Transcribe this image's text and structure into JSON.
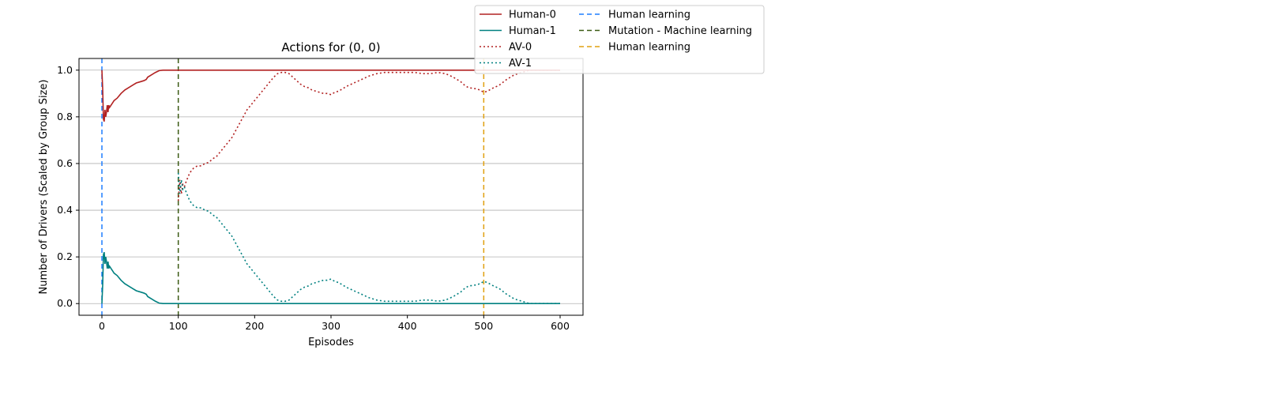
{
  "chart_data": {
    "type": "line",
    "title": "Actions for (0, 0)",
    "xlabel": "Episodes",
    "ylabel": "Number of Drivers (Scaled by Group Size)",
    "xlim": [
      -30,
      630
    ],
    "ylim": [
      -0.05,
      1.05
    ],
    "xticks": [
      0,
      100,
      200,
      300,
      400,
      500,
      600
    ],
    "yticks": [
      0.0,
      0.2,
      0.4,
      0.6,
      0.8,
      1.0
    ],
    "xtick_labels": [
      "0",
      "100",
      "200",
      "300",
      "400",
      "500",
      "600"
    ],
    "ytick_labels": [
      "0.0",
      "0.2",
      "0.4",
      "0.6",
      "0.8",
      "1.0"
    ],
    "grid": "horizontal",
    "legend_placement": "top-right, outside plot",
    "series": [
      {
        "name": "Human-0",
        "color": "#b22222",
        "style": "solid",
        "points": [
          [
            0,
            1.0
          ],
          [
            1,
            0.92
          ],
          [
            2,
            0.79
          ],
          [
            3,
            0.78
          ],
          [
            4,
            0.83
          ],
          [
            5,
            0.8
          ],
          [
            6,
            0.82
          ],
          [
            7,
            0.85
          ],
          [
            8,
            0.82
          ],
          [
            9,
            0.85
          ],
          [
            10,
            0.84
          ],
          [
            12,
            0.85
          ],
          [
            14,
            0.86
          ],
          [
            16,
            0.87
          ],
          [
            18,
            0.875
          ],
          [
            20,
            0.88
          ],
          [
            25,
            0.9
          ],
          [
            30,
            0.915
          ],
          [
            35,
            0.925
          ],
          [
            40,
            0.935
          ],
          [
            45,
            0.945
          ],
          [
            50,
            0.95
          ],
          [
            55,
            0.955
          ],
          [
            58,
            0.96
          ],
          [
            60,
            0.97
          ],
          [
            65,
            0.98
          ],
          [
            70,
            0.99
          ],
          [
            75,
            0.998
          ],
          [
            80,
            1.0
          ],
          [
            100,
            1.0
          ],
          [
            600,
            1.0
          ]
        ]
      },
      {
        "name": "Human-1",
        "color": "#008080",
        "style": "solid",
        "points": [
          [
            0,
            0.0
          ],
          [
            1,
            0.08
          ],
          [
            2,
            0.21
          ],
          [
            3,
            0.22
          ],
          [
            4,
            0.17
          ],
          [
            5,
            0.2
          ],
          [
            6,
            0.18
          ],
          [
            7,
            0.15
          ],
          [
            8,
            0.18
          ],
          [
            9,
            0.15
          ],
          [
            10,
            0.16
          ],
          [
            12,
            0.15
          ],
          [
            14,
            0.14
          ],
          [
            16,
            0.13
          ],
          [
            18,
            0.125
          ],
          [
            20,
            0.12
          ],
          [
            25,
            0.1
          ],
          [
            30,
            0.085
          ],
          [
            35,
            0.075
          ],
          [
            40,
            0.065
          ],
          [
            45,
            0.055
          ],
          [
            50,
            0.05
          ],
          [
            55,
            0.045
          ],
          [
            58,
            0.04
          ],
          [
            60,
            0.03
          ],
          [
            65,
            0.02
          ],
          [
            70,
            0.01
          ],
          [
            75,
            0.002
          ],
          [
            80,
            0.0
          ],
          [
            600,
            0.0
          ]
        ]
      },
      {
        "name": "AV-0",
        "color": "#b22222",
        "style": "dotted",
        "points": [
          [
            100,
            0.44
          ],
          [
            102,
            0.53
          ],
          [
            104,
            0.47
          ],
          [
            106,
            0.51
          ],
          [
            108,
            0.5
          ],
          [
            110,
            0.52
          ],
          [
            115,
            0.56
          ],
          [
            120,
            0.58
          ],
          [
            125,
            0.59
          ],
          [
            130,
            0.59
          ],
          [
            135,
            0.6
          ],
          [
            140,
            0.605
          ],
          [
            145,
            0.62
          ],
          [
            150,
            0.63
          ],
          [
            155,
            0.65
          ],
          [
            160,
            0.67
          ],
          [
            165,
            0.69
          ],
          [
            170,
            0.71
          ],
          [
            175,
            0.74
          ],
          [
            180,
            0.77
          ],
          [
            185,
            0.8
          ],
          [
            190,
            0.83
          ],
          [
            195,
            0.85
          ],
          [
            200,
            0.87
          ],
          [
            205,
            0.89
          ],
          [
            210,
            0.91
          ],
          [
            215,
            0.93
          ],
          [
            220,
            0.95
          ],
          [
            225,
            0.97
          ],
          [
            230,
            0.985
          ],
          [
            235,
            0.99
          ],
          [
            240,
            0.99
          ],
          [
            245,
            0.985
          ],
          [
            250,
            0.97
          ],
          [
            255,
            0.955
          ],
          [
            260,
            0.94
          ],
          [
            265,
            0.93
          ],
          [
            270,
            0.925
          ],
          [
            275,
            0.915
          ],
          [
            280,
            0.91
          ],
          [
            285,
            0.905
          ],
          [
            290,
            0.9
          ],
          [
            295,
            0.9
          ],
          [
            300,
            0.895
          ],
          [
            305,
            0.905
          ],
          [
            310,
            0.91
          ],
          [
            315,
            0.92
          ],
          [
            320,
            0.93
          ],
          [
            330,
            0.945
          ],
          [
            340,
            0.96
          ],
          [
            350,
            0.975
          ],
          [
            360,
            0.985
          ],
          [
            370,
            0.99
          ],
          [
            380,
            0.99
          ],
          [
            390,
            0.99
          ],
          [
            400,
            0.99
          ],
          [
            410,
            0.99
          ],
          [
            420,
            0.985
          ],
          [
            430,
            0.985
          ],
          [
            440,
            0.99
          ],
          [
            450,
            0.985
          ],
          [
            460,
            0.97
          ],
          [
            470,
            0.95
          ],
          [
            475,
            0.935
          ],
          [
            480,
            0.925
          ],
          [
            490,
            0.92
          ],
          [
            495,
            0.915
          ],
          [
            500,
            0.905
          ],
          [
            505,
            0.91
          ],
          [
            510,
            0.92
          ],
          [
            520,
            0.935
          ],
          [
            530,
            0.96
          ],
          [
            540,
            0.98
          ],
          [
            550,
            0.99
          ],
          [
            560,
            1.0
          ],
          [
            570,
            1.0
          ],
          [
            580,
            1.0
          ],
          [
            600,
            1.0
          ]
        ]
      },
      {
        "name": "AV-1",
        "color": "#008080",
        "style": "dotted",
        "points": [
          [
            100,
            0.56
          ],
          [
            102,
            0.47
          ],
          [
            104,
            0.53
          ],
          [
            106,
            0.49
          ],
          [
            108,
            0.5
          ],
          [
            110,
            0.48
          ],
          [
            115,
            0.44
          ],
          [
            120,
            0.42
          ],
          [
            125,
            0.41
          ],
          [
            130,
            0.41
          ],
          [
            135,
            0.4
          ],
          [
            140,
            0.395
          ],
          [
            145,
            0.38
          ],
          [
            150,
            0.37
          ],
          [
            155,
            0.35
          ],
          [
            160,
            0.33
          ],
          [
            165,
            0.31
          ],
          [
            170,
            0.29
          ],
          [
            175,
            0.26
          ],
          [
            180,
            0.23
          ],
          [
            185,
            0.2
          ],
          [
            190,
            0.17
          ],
          [
            195,
            0.15
          ],
          [
            200,
            0.13
          ],
          [
            205,
            0.11
          ],
          [
            210,
            0.09
          ],
          [
            215,
            0.07
          ],
          [
            220,
            0.05
          ],
          [
            225,
            0.03
          ],
          [
            230,
            0.015
          ],
          [
            235,
            0.01
          ],
          [
            240,
            0.01
          ],
          [
            245,
            0.015
          ],
          [
            250,
            0.03
          ],
          [
            255,
            0.045
          ],
          [
            260,
            0.06
          ],
          [
            265,
            0.07
          ],
          [
            270,
            0.075
          ],
          [
            275,
            0.085
          ],
          [
            280,
            0.09
          ],
          [
            285,
            0.095
          ],
          [
            290,
            0.1
          ],
          [
            295,
            0.1
          ],
          [
            300,
            0.105
          ],
          [
            305,
            0.095
          ],
          [
            310,
            0.09
          ],
          [
            315,
            0.08
          ],
          [
            320,
            0.07
          ],
          [
            330,
            0.055
          ],
          [
            340,
            0.04
          ],
          [
            350,
            0.025
          ],
          [
            360,
            0.015
          ],
          [
            370,
            0.01
          ],
          [
            380,
            0.01
          ],
          [
            390,
            0.01
          ],
          [
            400,
            0.01
          ],
          [
            410,
            0.01
          ],
          [
            420,
            0.015
          ],
          [
            430,
            0.015
          ],
          [
            440,
            0.01
          ],
          [
            450,
            0.015
          ],
          [
            460,
            0.03
          ],
          [
            470,
            0.05
          ],
          [
            475,
            0.065
          ],
          [
            480,
            0.075
          ],
          [
            490,
            0.08
          ],
          [
            495,
            0.085
          ],
          [
            500,
            0.095
          ],
          [
            505,
            0.09
          ],
          [
            510,
            0.08
          ],
          [
            520,
            0.065
          ],
          [
            530,
            0.04
          ],
          [
            540,
            0.02
          ],
          [
            550,
            0.01
          ],
          [
            560,
            0.0
          ],
          [
            570,
            0.0
          ],
          [
            580,
            0.0
          ],
          [
            600,
            0.0
          ]
        ]
      }
    ],
    "vlines": [
      {
        "name": "Human learning",
        "x": 0,
        "color": "#1e7fff",
        "style": "dashed"
      },
      {
        "name": "Mutation - Machine learning",
        "x": 100,
        "color": "#3b5a14",
        "style": "dashed"
      },
      {
        "name": "Human learning",
        "x": 500,
        "color": "#e0a010",
        "style": "dashed"
      }
    ],
    "legend": [
      {
        "label": "Human-0",
        "color": "#b22222",
        "style": "solid"
      },
      {
        "label": "Human-1",
        "color": "#008080",
        "style": "solid"
      },
      {
        "label": "AV-0",
        "color": "#b22222",
        "style": "dotted"
      },
      {
        "label": "AV-1",
        "color": "#008080",
        "style": "dotted"
      },
      {
        "label": "Human learning",
        "color": "#1e7fff",
        "style": "dashed"
      },
      {
        "label": "Mutation - Machine learning",
        "color": "#3b5a14",
        "style": "dashed"
      },
      {
        "label": "Human learning",
        "color": "#e0a010",
        "style": "dashed"
      }
    ]
  }
}
